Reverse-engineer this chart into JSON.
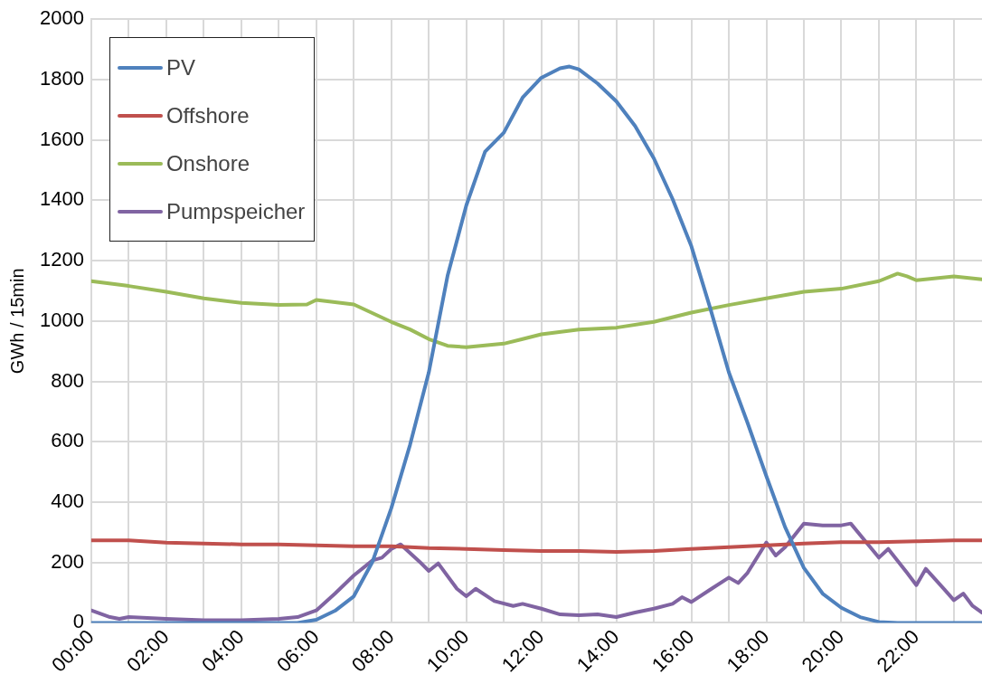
{
  "chart_data": {
    "type": "line",
    "ylabel": "GWh / 15min",
    "xlim": [
      0,
      23.75
    ],
    "ylim": [
      0,
      2000
    ],
    "xticks": [
      {
        "value": 0,
        "label": "00:00"
      },
      {
        "value": 1,
        "label": null
      },
      {
        "value": 2,
        "label": "02:00"
      },
      {
        "value": 3,
        "label": null
      },
      {
        "value": 4,
        "label": "04:00"
      },
      {
        "value": 5,
        "label": null
      },
      {
        "value": 6,
        "label": "06:00"
      },
      {
        "value": 7,
        "label": null
      },
      {
        "value": 8,
        "label": "08:00"
      },
      {
        "value": 9,
        "label": null
      },
      {
        "value": 10,
        "label": "10:00"
      },
      {
        "value": 11,
        "label": null
      },
      {
        "value": 12,
        "label": "12:00"
      },
      {
        "value": 13,
        "label": null
      },
      {
        "value": 14,
        "label": "14:00"
      },
      {
        "value": 15,
        "label": null
      },
      {
        "value": 16,
        "label": "16:00"
      },
      {
        "value": 17,
        "label": null
      },
      {
        "value": 18,
        "label": "18:00"
      },
      {
        "value": 19,
        "label": null
      },
      {
        "value": 20,
        "label": "20:00"
      },
      {
        "value": 21,
        "label": null
      },
      {
        "value": 22,
        "label": "22:00"
      },
      {
        "value": 23,
        "label": null
      }
    ],
    "yticks": [
      0,
      200,
      400,
      600,
      800,
      1000,
      1200,
      1400,
      1600,
      1800,
      2000
    ],
    "grid": true,
    "legend": "top left",
    "marker": "none",
    "line_style": "solid",
    "series": [
      {
        "name": "PV",
        "color": "#4f81bd",
        "x": [
          0,
          5.5,
          6,
          6.5,
          7,
          7.5,
          8,
          8.5,
          9,
          9.5,
          10,
          10.5,
          11,
          11.5,
          12,
          12.5,
          12.75,
          13,
          13.5,
          14,
          14.5,
          15,
          15.5,
          16,
          16.5,
          17,
          17.5,
          18,
          18.5,
          19,
          19.5,
          20,
          20.5,
          21,
          21.5,
          22,
          23,
          23.75
        ],
        "values": [
          0,
          0,
          10,
          40,
          88,
          203,
          380,
          590,
          830,
          1150,
          1383,
          1561,
          1624,
          1740,
          1806,
          1837,
          1843,
          1834,
          1787,
          1728,
          1646,
          1539,
          1404,
          1248,
          1044,
          830,
          662,
          486,
          317,
          182,
          97,
          50,
          19,
          3,
          0,
          0,
          0,
          0
        ]
      },
      {
        "name": "Offshore",
        "color": "#c0504d",
        "x": [
          0,
          1,
          2,
          3,
          4,
          5,
          6,
          7,
          8,
          9,
          10,
          11,
          12,
          13,
          14,
          15,
          16,
          17,
          18,
          19,
          20,
          21,
          22,
          23,
          23.75
        ],
        "values": [
          273,
          273,
          266,
          263,
          260,
          260,
          257,
          254,
          254,
          248,
          245,
          241,
          238,
          238,
          235,
          238,
          245,
          251,
          257,
          263,
          267,
          267,
          270,
          273,
          273
        ]
      },
      {
        "name": "Onshore",
        "color": "#9bbb59",
        "x": [
          0,
          1,
          2,
          3,
          4,
          5,
          5.75,
          6,
          7,
          8,
          8.5,
          9,
          9.5,
          10,
          11,
          11.5,
          12,
          13,
          14,
          15,
          16,
          17,
          18,
          19,
          20,
          21,
          21.5,
          21.75,
          22,
          23,
          23.75
        ],
        "values": [
          1132,
          1116,
          1097,
          1075,
          1060,
          1053,
          1055,
          1070,
          1055,
          997,
          972,
          940,
          918,
          913,
          925,
          940,
          956,
          972,
          978,
          997,
          1028,
          1053,
          1075,
          1097,
          1107,
          1132,
          1157,
          1148,
          1135,
          1148,
          1138
        ]
      },
      {
        "name": "Pumpspeicher",
        "color": "#8064a2",
        "x": [
          0,
          0.5,
          0.75,
          1,
          2,
          3,
          4,
          5,
          5.5,
          6,
          6.5,
          7,
          7.5,
          7.75,
          8,
          8.25,
          8.75,
          9,
          9.25,
          9.75,
          10,
          10.25,
          10.75,
          11.25,
          11.5,
          12,
          12.5,
          13,
          13.5,
          14,
          14.5,
          15,
          15.5,
          15.75,
          16,
          16.5,
          17,
          17.25,
          17.5,
          18,
          18.25,
          18.5,
          19,
          19.5,
          20,
          20.25,
          20.75,
          21,
          21.25,
          21.75,
          22,
          22.25,
          22.75,
          23,
          23.25,
          23.5,
          23.75
        ],
        "values": [
          41,
          19,
          13,
          19,
          13,
          9,
          9,
          13,
          19,
          41,
          97,
          157,
          207,
          216,
          245,
          260,
          203,
          172,
          197,
          113,
          88,
          113,
          72,
          56,
          63,
          47,
          28,
          25,
          28,
          19,
          34,
          47,
          63,
          85,
          69,
          110,
          150,
          132,
          166,
          266,
          223,
          251,
          329,
          323,
          323,
          329,
          254,
          216,
          245,
          166,
          125,
          179,
          110,
          75,
          97,
          56,
          34
        ]
      }
    ]
  }
}
